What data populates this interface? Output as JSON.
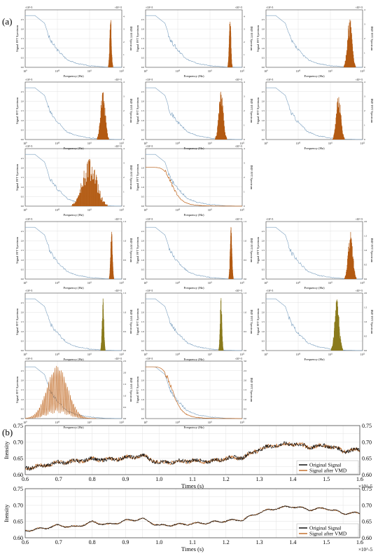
{
  "panel_a_label": "(a)",
  "panel_b_label": "(b)",
  "colors": {
    "signal_fft": "#7a9fbf",
    "imf_fft": "#c0661e",
    "imf_fill": "#b35a12",
    "imf_alt": "#8a7a1c",
    "original": "#000000",
    "vmd": "#c0661e",
    "grid": "#e2e2e2"
  },
  "chart_data": [
    {
      "type": "line",
      "panel": "(a)",
      "grid_layout": "6 rows x 3 columns of small twin-axis spectrum plots",
      "xlabel": "Frequency (Hz)",
      "ylabel_left": "Signal FFT Spectrum",
      "ylabel_right": "IMF FFT Spectrum",
      "xscale": "log",
      "xlim": [
        1000000000,
        1000000000000
      ],
      "x_ticks": [
        "10^9",
        "10^10",
        "10^11",
        "10^12"
      ],
      "left_exponent": "×10^-5",
      "right_exponent": "×10^-5",
      "grid": true,
      "series": [
        {
          "name": "Signal FFT Spectrum",
          "x": [
            1000000000.0,
            2000000000.0,
            4000000000.0,
            6000000000.0,
            10000000000.0,
            20000000000.0,
            40000000000.0,
            100000000000.0,
            300000000000.0,
            1000000000000.0
          ],
          "values": [
            2.7,
            2.7,
            2.3,
            1.4,
            0.9,
            0.4,
            0.2,
            0.08,
            0.02,
            0.0
          ]
        }
      ],
      "subplots": [
        {
          "row": 1,
          "col": 1,
          "imf_peak_hz": 450000000000.0,
          "imf_peak": 4.0,
          "right_ylim": [
            0,
            4.5
          ]
        },
        {
          "row": 1,
          "col": 2,
          "imf_peak_hz": 420000000000.0,
          "imf_peak": 4.0,
          "right_ylim": [
            0,
            4.5
          ]
        },
        {
          "row": 1,
          "col": 3,
          "imf_peak_hz": 400000000000.0,
          "imf_peak": 3.7,
          "right_ylim": [
            0,
            4.0
          ]
        },
        {
          "row": 2,
          "col": 1,
          "imf_peak_hz": 260000000000.0,
          "imf_peak": 3.6,
          "right_ylim": [
            0,
            4.0
          ]
        },
        {
          "row": 2,
          "col": 2,
          "imf_peak_hz": 220000000000.0,
          "imf_peak": 3.4,
          "right_ylim": [
            0,
            4.0
          ]
        },
        {
          "row": 2,
          "col": 3,
          "imf_peak_hz": 180000000000.0,
          "imf_peak": 3.2,
          "right_ylim": [
            0,
            4.0
          ]
        },
        {
          "row": 3,
          "col": 1,
          "imf_peak_hz": 100000000000.0,
          "imf_peak": 3.5,
          "right_ylim": [
            0,
            4.0
          ]
        },
        {
          "row": 3,
          "col": 2,
          "imf_peak_hz": 2000000000.0,
          "imf_peak": 2.7,
          "right_ylim": [
            0,
            4.0
          ]
        },
        {
          "row": 4,
          "col": 1,
          "imf_peak_hz": 480000000000.0,
          "imf_peak": 1.3,
          "right_ylim": [
            0,
            1.5
          ]
        },
        {
          "row": 4,
          "col": 2,
          "imf_peak_hz": 450000000000.0,
          "imf_peak": 1.4,
          "right_ylim": [
            0,
            1.5
          ]
        },
        {
          "row": 4,
          "col": 3,
          "imf_peak_hz": 420000000000.0,
          "imf_peak": 1.7,
          "right_ylim": [
            0,
            2.0
          ]
        },
        {
          "row": 5,
          "col": 1,
          "imf_peak_hz": 260000000000.0,
          "imf_peak": 1.4,
          "right_ylim": [
            0,
            1.5
          ]
        },
        {
          "row": 5,
          "col": 2,
          "imf_peak_hz": 220000000000.0,
          "imf_peak": 1.4,
          "right_ylim": [
            0,
            1.5
          ]
        },
        {
          "row": 5,
          "col": 3,
          "imf_peak_hz": 160000000000.0,
          "imf_peak": 1.8,
          "right_ylim": [
            0,
            2.0
          ]
        },
        {
          "row": 6,
          "col": 1,
          "imf_peak_hz": 10000000000.0,
          "imf_peak": 2.3,
          "right_ylim": [
            0,
            2.5
          ]
        },
        {
          "row": 6,
          "col": 2,
          "imf_peak_hz": 2000000000.0,
          "imf_peak": 2.7,
          "right_ylim": [
            0,
            3.0
          ]
        }
      ]
    },
    {
      "type": "line",
      "panel": "(b)",
      "subplot": "top",
      "xlabel": "Times (s)",
      "ylabel": "Itensity",
      "x_exponent": "×10^-5",
      "xlim": [
        0.6,
        1.6
      ],
      "ylim": [
        0.6,
        0.75
      ],
      "x_ticks": [
        0.6,
        0.7,
        0.8,
        0.9,
        1.0,
        1.1,
        1.2,
        1.3,
        1.4,
        1.5,
        1.6
      ],
      "y_ticks": [
        0.6,
        0.65,
        0.7,
        0.75
      ],
      "legend": "bottom-right",
      "grid": true,
      "x": [
        0.6,
        0.65,
        0.7,
        0.75,
        0.8,
        0.85,
        0.9,
        0.95,
        1.0,
        1.05,
        1.1,
        1.15,
        1.2,
        1.25,
        1.3,
        1.35,
        1.4,
        1.45,
        1.5,
        1.55,
        1.6
      ],
      "series": [
        {
          "name": "Original Signal",
          "values": [
            0.62,
            0.627,
            0.637,
            0.641,
            0.648,
            0.645,
            0.652,
            0.658,
            0.636,
            0.64,
            0.643,
            0.64,
            0.65,
            0.653,
            0.678,
            0.69,
            0.695,
            0.684,
            0.69,
            0.673,
            0.675
          ]
        },
        {
          "name": "Signal after VMD",
          "values": [
            0.62,
            0.627,
            0.637,
            0.641,
            0.648,
            0.645,
            0.652,
            0.658,
            0.636,
            0.64,
            0.643,
            0.64,
            0.65,
            0.653,
            0.678,
            0.69,
            0.695,
            0.684,
            0.69,
            0.673,
            0.675
          ]
        }
      ]
    },
    {
      "type": "line",
      "panel": "(b)",
      "subplot": "bottom",
      "xlabel": "Times (s)",
      "ylabel": "Itensity",
      "x_exponent": "×10^-5",
      "xlim": [
        0.6,
        1.6
      ],
      "ylim": [
        0.6,
        0.75
      ],
      "x_ticks": [
        0.6,
        0.7,
        0.8,
        0.9,
        1.0,
        1.1,
        1.2,
        1.3,
        1.4,
        1.5,
        1.6
      ],
      "y_ticks": [
        0.6,
        0.65,
        0.7,
        0.75
      ],
      "legend": "bottom-right",
      "grid": true,
      "x": [
        0.6,
        0.65,
        0.7,
        0.75,
        0.8,
        0.85,
        0.9,
        0.95,
        1.0,
        1.05,
        1.1,
        1.15,
        1.2,
        1.25,
        1.3,
        1.35,
        1.4,
        1.45,
        1.5,
        1.55,
        1.6
      ],
      "series": [
        {
          "name": "Original Signal",
          "values": [
            0.622,
            0.628,
            0.638,
            0.633,
            0.648,
            0.64,
            0.652,
            0.658,
            0.637,
            0.64,
            0.643,
            0.646,
            0.652,
            0.655,
            0.678,
            0.69,
            0.696,
            0.686,
            0.69,
            0.675,
            0.675
          ]
        },
        {
          "name": "Signal after VMD",
          "values": [
            0.622,
            0.628,
            0.638,
            0.633,
            0.648,
            0.64,
            0.652,
            0.658,
            0.637,
            0.64,
            0.643,
            0.646,
            0.652,
            0.655,
            0.678,
            0.69,
            0.696,
            0.686,
            0.69,
            0.675,
            0.675
          ]
        }
      ]
    }
  ]
}
